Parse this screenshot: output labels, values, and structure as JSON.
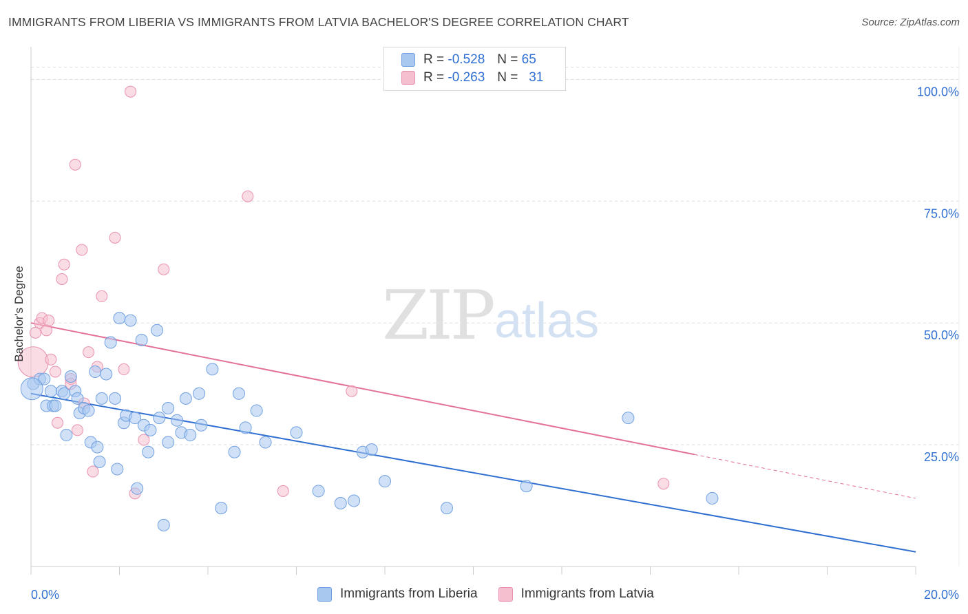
{
  "title": "IMMIGRANTS FROM LIBERIA VS IMMIGRANTS FROM LATVIA BACHELOR'S DEGREE CORRELATION CHART",
  "source": "Source: ZipAtlas.com",
  "watermark": {
    "zip": "ZIP",
    "atlas": "atlas"
  },
  "legend": {
    "rows": [
      {
        "r_label": "R =",
        "r_value": "-0.528",
        "n_label": "N =",
        "n_value": "65"
      },
      {
        "r_label": "R =",
        "r_value": "-0.263",
        "n_label": "N =",
        "n_value": "31"
      }
    ]
  },
  "colors": {
    "blue_fill": "#a9c8f0",
    "blue_stroke": "#6f9fe0",
    "blue_line": "#2f6fd1",
    "pink_fill": "#f6bfd0",
    "pink_stroke": "#e890ad",
    "pink_line": "#e3719a",
    "axis_text": "#2f6fd1",
    "grid": "#dddddd"
  },
  "chart_data": {
    "type": "scatter",
    "title": "IMMIGRANTS FROM LIBERIA VS IMMIGRANTS FROM LATVIA BACHELOR'S DEGREE CORRELATION CHART",
    "xlabel": "",
    "ylabel": "Bachelor's Degree",
    "xlim": [
      0,
      20
    ],
    "ylim": [
      0,
      105
    ],
    "x_tick_labels": [
      "0.0%",
      "20.0%"
    ],
    "y_ticks": [
      25,
      50,
      75,
      100
    ],
    "y_tick_labels": [
      "25.0%",
      "50.0%",
      "75.0%",
      "100.0%"
    ],
    "grid": true,
    "series": [
      {
        "name": "Immigrants from Liberia",
        "color": "#6f9fe0",
        "points": [
          [
            0.05,
            37.5
          ],
          [
            0.2,
            38.5
          ],
          [
            0.3,
            38.5
          ],
          [
            0.35,
            33
          ],
          [
            0.45,
            36
          ],
          [
            0.5,
            33
          ],
          [
            0.55,
            33
          ],
          [
            0.7,
            36
          ],
          [
            0.75,
            35.5
          ],
          [
            0.8,
            27
          ],
          [
            0.9,
            39
          ],
          [
            1.0,
            36
          ],
          [
            1.05,
            34.5
          ],
          [
            1.1,
            31.5
          ],
          [
            1.2,
            32.5
          ],
          [
            1.3,
            32
          ],
          [
            1.35,
            25.5
          ],
          [
            1.45,
            40
          ],
          [
            1.5,
            24.5
          ],
          [
            1.55,
            21.5
          ],
          [
            1.6,
            34.5
          ],
          [
            1.7,
            39.5
          ],
          [
            1.8,
            46
          ],
          [
            1.9,
            34.5
          ],
          [
            1.95,
            20
          ],
          [
            2.0,
            51
          ],
          [
            2.1,
            29.5
          ],
          [
            2.15,
            31
          ],
          [
            2.25,
            50.5
          ],
          [
            2.35,
            30.5
          ],
          [
            2.4,
            16
          ],
          [
            2.5,
            46.5
          ],
          [
            2.55,
            29
          ],
          [
            2.65,
            23.5
          ],
          [
            2.7,
            28
          ],
          [
            2.85,
            48.5
          ],
          [
            2.9,
            30.5
          ],
          [
            3.0,
            8.5
          ],
          [
            3.1,
            25.5
          ],
          [
            3.1,
            32.5
          ],
          [
            3.3,
            30
          ],
          [
            3.4,
            27.5
          ],
          [
            3.5,
            34.5
          ],
          [
            3.6,
            27
          ],
          [
            3.8,
            35.5
          ],
          [
            3.85,
            29
          ],
          [
            4.1,
            40.5
          ],
          [
            4.3,
            12
          ],
          [
            4.6,
            23.5
          ],
          [
            4.7,
            35.5
          ],
          [
            4.85,
            28.5
          ],
          [
            5.1,
            32
          ],
          [
            5.3,
            25.5
          ],
          [
            6.0,
            27.5
          ],
          [
            6.5,
            15.5
          ],
          [
            7.0,
            13
          ],
          [
            7.3,
            13.5
          ],
          [
            7.5,
            23.5
          ],
          [
            7.7,
            24
          ],
          [
            8.0,
            17.5
          ],
          [
            9.4,
            12
          ],
          [
            11.2,
            16.5
          ],
          [
            13.5,
            30.5
          ],
          [
            15.4,
            14
          ],
          [
            0.02,
            36.5
          ]
        ]
      },
      {
        "name": "Immigrants from Latvia",
        "color": "#e890ad",
        "points": [
          [
            0.05,
            42
          ],
          [
            0.1,
            48
          ],
          [
            0.2,
            50
          ],
          [
            0.25,
            51
          ],
          [
            0.35,
            48.5
          ],
          [
            0.4,
            50.5
          ],
          [
            0.45,
            42.5
          ],
          [
            0.55,
            40
          ],
          [
            0.6,
            29.5
          ],
          [
            0.7,
            59
          ],
          [
            0.75,
            62
          ],
          [
            0.9,
            38.5
          ],
          [
            0.9,
            37.5
          ],
          [
            1.0,
            82.5
          ],
          [
            1.05,
            28
          ],
          [
            1.15,
            65
          ],
          [
            1.2,
            33.5
          ],
          [
            1.3,
            44
          ],
          [
            1.4,
            19.5
          ],
          [
            1.5,
            41
          ],
          [
            1.6,
            55.5
          ],
          [
            1.9,
            67.5
          ],
          [
            2.1,
            40.5
          ],
          [
            2.25,
            97.5
          ],
          [
            2.35,
            15
          ],
          [
            2.55,
            26
          ],
          [
            3.0,
            61
          ],
          [
            4.9,
            76
          ],
          [
            5.7,
            15.5
          ],
          [
            7.25,
            36
          ],
          [
            14.3,
            17
          ]
        ]
      }
    ],
    "trend_lines": [
      {
        "name": "Immigrants from Liberia",
        "x0": 0,
        "y0": 35.5,
        "x1": 20,
        "y1": 3.0,
        "dashed_from": null
      },
      {
        "name": "Immigrants from Latvia",
        "x0": 0,
        "y0": 50.0,
        "x1": 15.0,
        "y1": 23.0,
        "dash_x1": 20,
        "dash_y1": 14.0
      }
    ]
  },
  "bottom_legend": [
    {
      "label": "Immigrants from Liberia"
    },
    {
      "label": "Immigrants from Latvia"
    }
  ]
}
